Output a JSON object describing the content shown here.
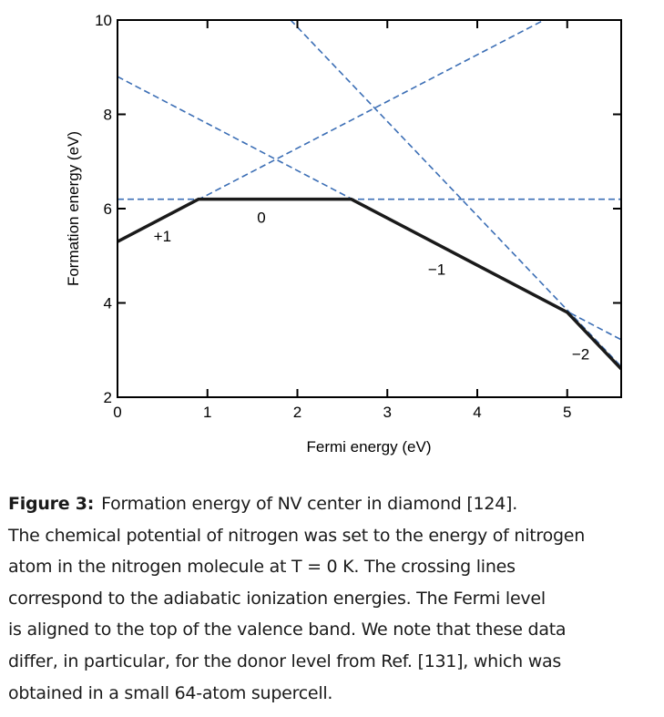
{
  "chart_data": {
    "type": "line",
    "xlabel": "Fermi energy (eV)",
    "ylabel": "Formation energy (eV)",
    "xlim": [
      0,
      5.6
    ],
    "ylim": [
      2,
      10
    ],
    "xticks": [
      0,
      1,
      2,
      3,
      4,
      5
    ],
    "yticks": [
      2,
      4,
      6,
      8,
      10
    ],
    "grid": false,
    "charge_state_lines": [
      {
        "label": "+1",
        "x": [
          0,
          5.6
        ],
        "y": [
          5.3,
          10.85
        ]
      },
      {
        "label": "0",
        "x": [
          0,
          5.6
        ],
        "y": [
          6.2,
          6.2
        ]
      },
      {
        "label": "−1",
        "x": [
          0,
          5.6
        ],
        "y": [
          8.8,
          3.22
        ]
      },
      {
        "label": "−2",
        "x": [
          0,
          5.6
        ],
        "y": [
          13.85,
          2.65
        ]
      }
    ],
    "lowest_energy_envelope": {
      "x": [
        0,
        0.9,
        2.6,
        5.0,
        5.6
      ],
      "y": [
        5.3,
        6.2,
        6.2,
        3.8,
        2.6
      ]
    },
    "region_labels": [
      {
        "text": "+1",
        "x": 0.5,
        "y": 5.3
      },
      {
        "text": "0",
        "x": 1.6,
        "y": 5.7
      },
      {
        "text": "−1",
        "x": 3.55,
        "y": 4.6
      },
      {
        "text": "−2",
        "x": 5.15,
        "y": 2.8
      }
    ],
    "line_colors": {
      "dashed": "#3b6eb5",
      "envelope": "#1a1a1a"
    }
  },
  "caption": {
    "label": "Figure 3:",
    "lines": [
      "Formation energy of NV center in diamond [124].",
      "The chemical potential of nitrogen was set to the energy of nitrogen",
      "atom in the nitrogen molecule at T = 0 K. The crossing lines",
      "correspond to the adiabatic ionization energies. The Fermi level",
      "is aligned to the top of the valence band. We note that these data",
      "differ, in particular, for the donor level from Ref. [131], which was",
      "obtained in a small 64-atom supercell."
    ]
  }
}
